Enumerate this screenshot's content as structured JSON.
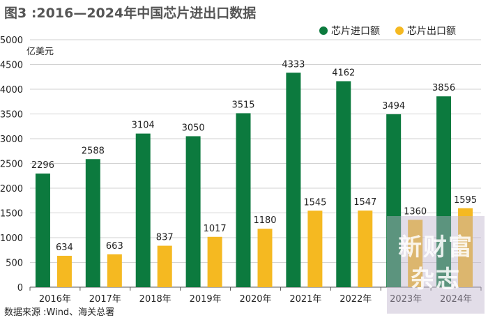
{
  "chart_data": {
    "type": "bar",
    "title": "图3 :2016—2024年中国芯片进出口数据",
    "ylabel": "亿美元",
    "xlabel": "",
    "ylim": [
      0,
      5000
    ],
    "yticks": [
      0,
      500,
      1000,
      1500,
      2000,
      2500,
      3000,
      3500,
      4000,
      4500,
      5000
    ],
    "grid": true,
    "legend_position": "top-right",
    "categories": [
      "2016年",
      "2017年",
      "2018年",
      "2019年",
      "2020年",
      "2021年",
      "2022年",
      "2023年",
      "2024年"
    ],
    "series": [
      {
        "name": "芯片进口额",
        "color": "#0c7a3e",
        "values": [
          2296,
          2588,
          3104,
          3050,
          3515,
          4333,
          4162,
          3494,
          3856
        ]
      },
      {
        "name": "芯片出口额",
        "color": "#f5b921",
        "values": [
          634,
          663,
          837,
          1017,
          1180,
          1545,
          1547,
          1360,
          1595
        ]
      }
    ],
    "source": "数据来源 :Wind、海关总署"
  },
  "watermark": {
    "line1": "新财富",
    "line2": "杂志"
  }
}
